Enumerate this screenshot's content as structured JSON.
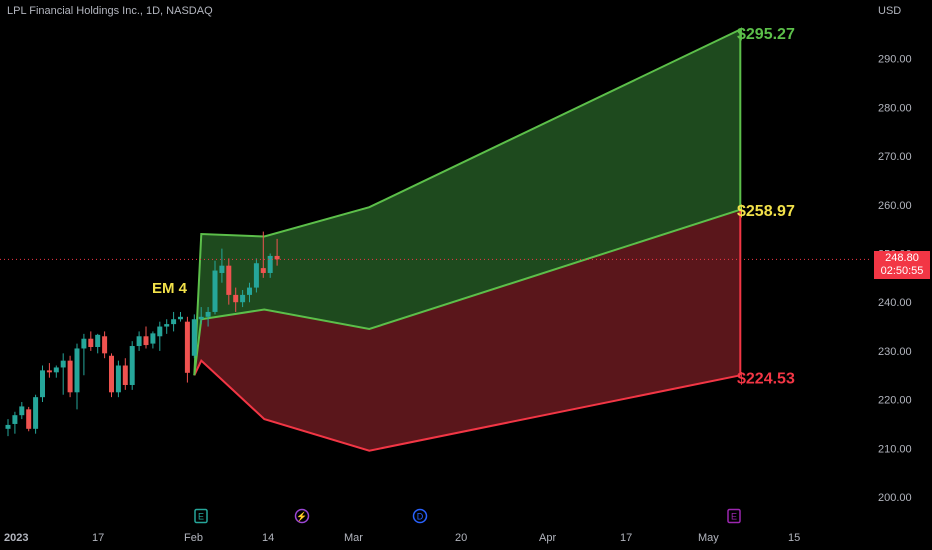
{
  "header": {
    "symbol_title": "LPL Financial Holdings Inc., 1D, NASDAQ",
    "currency": "USD"
  },
  "price_tag": {
    "price": "248.80",
    "countdown": "02:50:55"
  },
  "colors": {
    "background": "#000000",
    "up": "#26a69a",
    "down": "#ef5350",
    "upper_band_line": "#5cbf4a",
    "upper_band_fill": "#1e4a1e",
    "lower_band_line": "#f23645",
    "lower_band_fill": "#5a161b",
    "label_green": "#5cbf4a",
    "label_yellow": "#f2e14a",
    "label_red": "#f23645",
    "axis_text": "#b2b5be",
    "event_earnings": "#26a69a",
    "event_split": "#9c47d6",
    "event_dividend": "#2962ff",
    "event_earnings_future": "#9c27b0"
  },
  "chart_data": {
    "type": "candlestick",
    "title": "LPL Financial Holdings Inc., 1D, NASDAQ",
    "y_axis": {
      "currency": "USD",
      "range": [
        195,
        299
      ],
      "ticks": [
        "200.00",
        "210.00",
        "220.00",
        "230.00",
        "240.00",
        "250.00",
        "260.00",
        "270.00",
        "280.00",
        "290.00"
      ]
    },
    "x_axis": {
      "tick_labels": [
        "2023",
        "17",
        "Feb",
        "14",
        "Mar",
        "20",
        "Apr",
        "17",
        "May",
        "15"
      ]
    },
    "candles": [
      {
        "o": 214.0,
        "h": 216.0,
        "l": 212.5,
        "c": 214.8
      },
      {
        "o": 215.0,
        "h": 217.5,
        "l": 213.0,
        "c": 216.8
      },
      {
        "o": 216.8,
        "h": 219.5,
        "l": 216.0,
        "c": 218.6
      },
      {
        "o": 218.0,
        "h": 218.5,
        "l": 213.5,
        "c": 214.0
      },
      {
        "o": 214.0,
        "h": 221.0,
        "l": 213.0,
        "c": 220.5
      },
      {
        "o": 220.5,
        "h": 227.0,
        "l": 219.5,
        "c": 226.0
      },
      {
        "o": 226.0,
        "h": 227.5,
        "l": 224.5,
        "c": 225.6
      },
      {
        "o": 225.6,
        "h": 227.0,
        "l": 224.5,
        "c": 226.6
      },
      {
        "o": 226.6,
        "h": 229.5,
        "l": 221.0,
        "c": 228.0
      },
      {
        "o": 228.0,
        "h": 229.0,
        "l": 220.5,
        "c": 221.5
      },
      {
        "o": 221.5,
        "h": 231.5,
        "l": 218.0,
        "c": 230.5
      },
      {
        "o": 230.5,
        "h": 233.5,
        "l": 225.0,
        "c": 232.5
      },
      {
        "o": 232.5,
        "h": 234.0,
        "l": 230.0,
        "c": 230.8
      },
      {
        "o": 230.8,
        "h": 233.5,
        "l": 229.5,
        "c": 233.3
      },
      {
        "o": 233.0,
        "h": 234.0,
        "l": 228.5,
        "c": 229.5
      },
      {
        "o": 229.0,
        "h": 229.5,
        "l": 220.5,
        "c": 221.5
      },
      {
        "o": 221.5,
        "h": 228.0,
        "l": 220.5,
        "c": 227.0
      },
      {
        "o": 227.0,
        "h": 228.5,
        "l": 222.0,
        "c": 223.0
      },
      {
        "o": 223.0,
        "h": 232.0,
        "l": 222.0,
        "c": 231.0
      },
      {
        "o": 231.0,
        "h": 234.0,
        "l": 230.0,
        "c": 233.0
      },
      {
        "o": 233.0,
        "h": 235.0,
        "l": 230.5,
        "c": 231.2
      },
      {
        "o": 231.5,
        "h": 234.0,
        "l": 230.5,
        "c": 233.6
      },
      {
        "o": 233.0,
        "h": 236.0,
        "l": 230.0,
        "c": 235.0
      },
      {
        "o": 235.0,
        "h": 236.5,
        "l": 233.5,
        "c": 235.5
      },
      {
        "o": 235.5,
        "h": 238.0,
        "l": 234.0,
        "c": 236.5
      },
      {
        "o": 236.5,
        "h": 238.0,
        "l": 236.0,
        "c": 237.0
      },
      {
        "o": 236.0,
        "h": 237.0,
        "l": 223.5,
        "c": 225.5
      },
      {
        "o": 229.0,
        "h": 237.5,
        "l": 228.5,
        "c": 236.5
      },
      {
        "o": 236.5,
        "h": 239.0,
        "l": 235.5,
        "c": 237.0
      },
      {
        "o": 237.0,
        "h": 239.0,
        "l": 235.0,
        "c": 238.0
      },
      {
        "o": 238.0,
        "h": 248.5,
        "l": 237.5,
        "c": 246.5
      },
      {
        "o": 246.0,
        "h": 251.0,
        "l": 244.0,
        "c": 247.5
      },
      {
        "o": 247.5,
        "h": 249.0,
        "l": 239.5,
        "c": 241.5
      },
      {
        "o": 241.5,
        "h": 243.0,
        "l": 238.0,
        "c": 240.0
      },
      {
        "o": 240.0,
        "h": 242.5,
        "l": 239.0,
        "c": 241.5
      },
      {
        "o": 241.5,
        "h": 244.0,
        "l": 240.0,
        "c": 243.0
      },
      {
        "o": 243.0,
        "h": 249.0,
        "l": 242.0,
        "c": 248.0
      },
      {
        "o": 247.0,
        "h": 254.5,
        "l": 245.0,
        "c": 246.0
      },
      {
        "o": 246.0,
        "h": 250.0,
        "l": 245.0,
        "c": 249.5
      },
      {
        "o": 249.5,
        "h": 253.0,
        "l": 247.5,
        "c": 248.8
      }
    ],
    "last_price": 248.8,
    "expected_move": {
      "label": "EM 4",
      "upper_line": [
        [
          0,
          225.0
        ],
        [
          1,
          254.0
        ],
        [
          10,
          253.5
        ],
        [
          25,
          259.5
        ],
        [
          78,
          296.0
        ]
      ],
      "mid_line": [
        [
          0,
          225.0
        ],
        [
          1,
          236.5
        ],
        [
          10,
          238.5
        ],
        [
          25,
          234.5
        ],
        [
          78,
          259.0
        ]
      ],
      "lower_line": [
        [
          0,
          225.0
        ],
        [
          1,
          228.0
        ],
        [
          10,
          216.0
        ],
        [
          25,
          209.5
        ],
        [
          78,
          225.0
        ]
      ],
      "labels": [
        {
          "text": "$295.27",
          "value": 295.27,
          "color": "green"
        },
        {
          "text": "$258.97",
          "value": 258.97,
          "color": "yellow"
        },
        {
          "text": "$224.53",
          "value": 224.53,
          "color": "red"
        }
      ]
    },
    "events": [
      {
        "symbol": "E",
        "kind": "earnings"
      },
      {
        "symbol": "⚡",
        "kind": "split"
      },
      {
        "symbol": "D",
        "kind": "dividend"
      },
      {
        "symbol": "E",
        "kind": "earnings_future"
      }
    ]
  }
}
